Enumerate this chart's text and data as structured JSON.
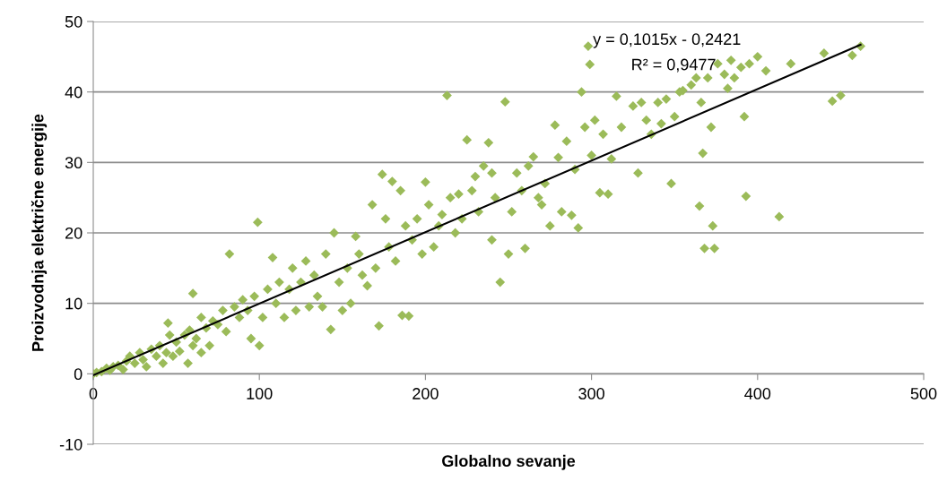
{
  "chart_data": {
    "type": "scatter",
    "xlabel": "Globalno sevanje",
    "ylabel": "Proizvodnja električne energije",
    "xlim": [
      0,
      500
    ],
    "ylim": [
      -10,
      50
    ],
    "xticks": [
      0,
      100,
      200,
      300,
      400,
      500
    ],
    "yticks": [
      -10,
      0,
      10,
      20,
      30,
      40,
      50
    ],
    "grid": "y",
    "marker": "diamond",
    "legend": false,
    "annotations": [
      "y = 0,1015x - 0,2421",
      "R² = 0,9477"
    ],
    "series": [
      {
        "color": "#9bbb59",
        "x": [
          0,
          2,
          5,
          8,
          10,
          12,
          15,
          18,
          20,
          22,
          25,
          28,
          30,
          32,
          35,
          38,
          40,
          42,
          44,
          45,
          46,
          48,
          50,
          52,
          55,
          57,
          58,
          60,
          60,
          62,
          65,
          65,
          68,
          70,
          72,
          75,
          78,
          80,
          82,
          85,
          88,
          90,
          93,
          95,
          97,
          99,
          100,
          102,
          105,
          108,
          110,
          112,
          115,
          118,
          120,
          122,
          125,
          128,
          130,
          133,
          135,
          138,
          140,
          143,
          145,
          148,
          150,
          153,
          155,
          158,
          160,
          162,
          165,
          168,
          170,
          172,
          174,
          176,
          178,
          180,
          182,
          185,
          186,
          188,
          190,
          192,
          195,
          198,
          200,
          202,
          205,
          208,
          210,
          213,
          215,
          218,
          220,
          222,
          225,
          228,
          230,
          232,
          235,
          238,
          240,
          240,
          242,
          245,
          248,
          250,
          252,
          255,
          258,
          260,
          262,
          265,
          268,
          270,
          272,
          275,
          278,
          280,
          282,
          285,
          288,
          290,
          292,
          294,
          296,
          298,
          299,
          300,
          302,
          305,
          307,
          310,
          312,
          315,
          318,
          325,
          328,
          330,
          333,
          336,
          340,
          342,
          345,
          348,
          350,
          353,
          355,
          360,
          363,
          365,
          366,
          367,
          368,
          370,
          372,
          373,
          374,
          376,
          380,
          382,
          384,
          386,
          390,
          392,
          393,
          395,
          400,
          405,
          413,
          420,
          440,
          445,
          450,
          457,
          462
        ],
        "values": [
          0,
          0.2,
          0.3,
          0.8,
          0.5,
          1,
          1.2,
          0.6,
          1.8,
          2.5,
          1.5,
          3,
          2,
          1,
          3.5,
          2.5,
          4,
          1.5,
          3,
          7.2,
          5.5,
          2.5,
          4.5,
          3.2,
          5.5,
          1.5,
          6.2,
          11.4,
          4,
          5,
          8,
          3,
          6.5,
          4,
          7.5,
          7,
          9,
          6,
          17,
          9.5,
          8,
          10.5,
          9,
          5,
          11,
          21.5,
          4,
          8,
          12,
          16.5,
          10,
          13,
          8,
          12,
          15,
          9,
          13,
          16,
          9.5,
          14,
          11,
          9.5,
          17,
          6.3,
          20,
          13,
          9,
          15,
          10,
          19.5,
          17,
          14,
          12.5,
          24,
          15,
          6.8,
          28.3,
          22,
          18,
          27.3,
          16,
          26,
          8.3,
          21,
          8.2,
          19,
          22,
          17,
          27.2,
          24,
          18,
          21,
          22.6,
          39.5,
          25,
          20,
          25.5,
          22,
          33.2,
          26,
          28,
          23,
          29.5,
          32.8,
          28.5,
          19,
          25,
          13,
          38.6,
          17,
          23,
          28.5,
          26,
          17.8,
          29.5,
          30.8,
          25,
          24,
          27,
          21,
          35.3,
          30.7,
          23,
          33,
          22.5,
          29,
          20.7,
          40,
          35,
          46.5,
          43.9,
          31,
          36,
          25.7,
          34,
          25.5,
          30.5,
          39.4,
          35,
          38,
          28.5,
          38.5,
          36,
          34,
          38.5,
          35.5,
          39,
          27,
          36.5,
          40,
          40.2,
          41,
          42,
          23.8,
          38.5,
          31.3,
          17.8,
          42,
          35,
          21,
          17.8,
          44,
          42.5,
          40.5,
          44.5,
          42,
          43.5,
          36.5,
          25.2,
          44,
          45,
          43,
          22.3,
          44,
          45.5,
          38.7,
          39.5,
          45.2,
          46.5
        ]
      },
      {
        "type": "line",
        "color": "#000000",
        "x": [
          0,
          462
        ],
        "values": [
          -0.2,
          46.7
        ],
        "marker": "none",
        "line_style": "solid"
      }
    ]
  }
}
